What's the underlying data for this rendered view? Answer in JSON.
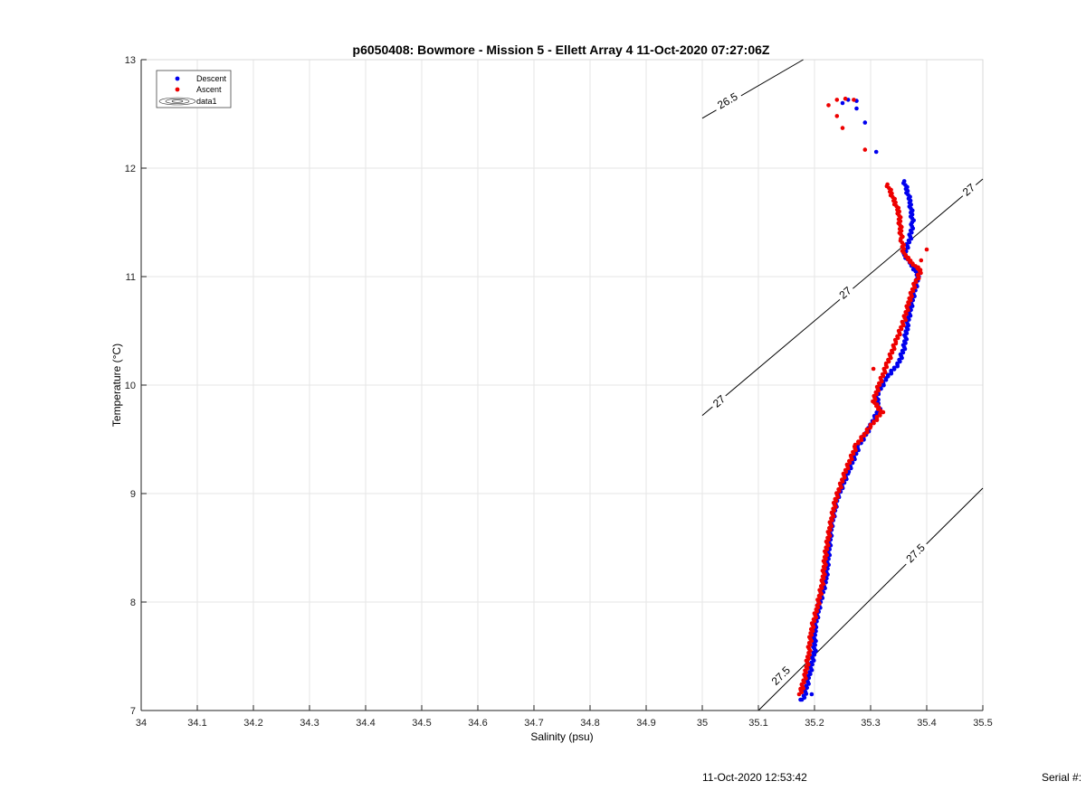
{
  "chart_data": {
    "type": "scatter",
    "title": "p6050408: Bowmore - Mission 5 - Ellett Array 4 11-Oct-2020 07:27:06Z",
    "xlabel": "Salinity (psu)",
    "ylabel": "Temperature (°C)",
    "xlim": [
      34,
      35.5
    ],
    "ylim": [
      7,
      13
    ],
    "x_ticks": [
      "34",
      "34.1",
      "34.2",
      "34.3",
      "34.4",
      "34.5",
      "34.6",
      "34.7",
      "34.8",
      "34.9",
      "35",
      "35.1",
      "35.2",
      "35.3",
      "35.4",
      "35.5"
    ],
    "y_ticks": [
      "7",
      "8",
      "9",
      "10",
      "11",
      "12",
      "13"
    ],
    "grid": true,
    "legend_position": "top-left",
    "legend": [
      "Descent",
      "Ascent",
      "data1"
    ],
    "series": [
      {
        "name": "Descent",
        "color": "#0000ee",
        "marker": "dot",
        "profile": [
          [
            35.18,
            7.1
          ],
          [
            35.19,
            7.3
          ],
          [
            35.2,
            7.55
          ],
          [
            35.2,
            7.75
          ],
          [
            35.21,
            8.0
          ],
          [
            35.22,
            8.2
          ],
          [
            35.225,
            8.45
          ],
          [
            35.23,
            8.7
          ],
          [
            35.24,
            8.95
          ],
          [
            35.26,
            9.2
          ],
          [
            35.28,
            9.45
          ],
          [
            35.3,
            9.62
          ],
          [
            35.315,
            9.78
          ],
          [
            35.31,
            9.9
          ],
          [
            35.33,
            10.08
          ],
          [
            35.35,
            10.2
          ],
          [
            35.36,
            10.35
          ],
          [
            35.365,
            10.55
          ],
          [
            35.375,
            10.8
          ],
          [
            35.385,
            11.0
          ],
          [
            35.375,
            11.1
          ],
          [
            35.36,
            11.2
          ],
          [
            35.37,
            11.35
          ],
          [
            35.375,
            11.5
          ],
          [
            35.37,
            11.7
          ],
          [
            35.36,
            11.88
          ]
        ],
        "extra": [
          [
            35.175,
            7.1
          ],
          [
            35.195,
            7.15
          ],
          [
            35.31,
            12.15
          ],
          [
            35.29,
            12.42
          ],
          [
            35.275,
            12.55
          ],
          [
            35.275,
            12.62
          ],
          [
            35.26,
            12.63
          ],
          [
            35.25,
            12.6
          ]
        ]
      },
      {
        "name": "Ascent",
        "color": "#ee0000",
        "marker": "dot",
        "profile": [
          [
            35.175,
            7.15
          ],
          [
            35.185,
            7.35
          ],
          [
            35.19,
            7.55
          ],
          [
            35.195,
            7.75
          ],
          [
            35.205,
            7.95
          ],
          [
            35.215,
            8.2
          ],
          [
            35.22,
            8.45
          ],
          [
            35.228,
            8.7
          ],
          [
            35.238,
            8.95
          ],
          [
            35.255,
            9.2
          ],
          [
            35.275,
            9.45
          ],
          [
            35.3,
            9.62
          ],
          [
            35.32,
            9.75
          ],
          [
            35.305,
            9.85
          ],
          [
            35.315,
            10.0
          ],
          [
            35.33,
            10.2
          ],
          [
            35.345,
            10.4
          ],
          [
            35.36,
            10.6
          ],
          [
            35.37,
            10.8
          ],
          [
            35.38,
            10.95
          ],
          [
            35.39,
            11.05
          ],
          [
            35.375,
            11.12
          ],
          [
            35.36,
            11.2
          ],
          [
            35.355,
            11.35
          ],
          [
            35.35,
            11.6
          ],
          [
            35.33,
            11.85
          ]
        ],
        "extra": [
          [
            35.175,
            7.2
          ],
          [
            35.305,
            10.15
          ],
          [
            35.29,
            12.17
          ],
          [
            35.25,
            12.37
          ],
          [
            35.24,
            12.48
          ],
          [
            35.225,
            12.58
          ],
          [
            35.24,
            12.63
          ],
          [
            35.255,
            12.64
          ],
          [
            35.27,
            12.63
          ],
          [
            35.39,
            11.15
          ],
          [
            35.4,
            11.25
          ]
        ]
      }
    ],
    "density_contours": [
      {
        "label": "26.5",
        "points": [
          [
            35.0,
            12.46
          ],
          [
            35.18,
            13.0
          ]
        ],
        "label_at": [
          35.045,
          12.62
        ]
      },
      {
        "label": "27",
        "points": [
          [
            35.0,
            9.72
          ],
          [
            35.5,
            11.9
          ]
        ],
        "label_at": [
          35.03,
          9.85
        ]
      },
      {
        "label": "27",
        "points": [
          [
            35.0,
            9.72
          ],
          [
            35.5,
            11.9
          ]
        ],
        "label_at": [
          35.255,
          10.85
        ]
      },
      {
        "label": "27",
        "points": [
          [
            35.0,
            9.72
          ],
          [
            35.5,
            11.9
          ]
        ],
        "label_at": [
          35.475,
          11.8
        ]
      },
      {
        "label": "27.5",
        "points": [
          [
            35.1,
            7.0
          ],
          [
            35.5,
            9.05
          ]
        ],
        "label_at": [
          35.14,
          7.32
        ]
      },
      {
        "label": "27.5",
        "points": [
          [
            35.1,
            7.0
          ],
          [
            35.5,
            9.05
          ]
        ],
        "label_at": [
          35.38,
          8.45
        ]
      }
    ]
  },
  "footer": {
    "date": "11-Oct-2020 12:53:42",
    "serial": "Serial #:"
  }
}
